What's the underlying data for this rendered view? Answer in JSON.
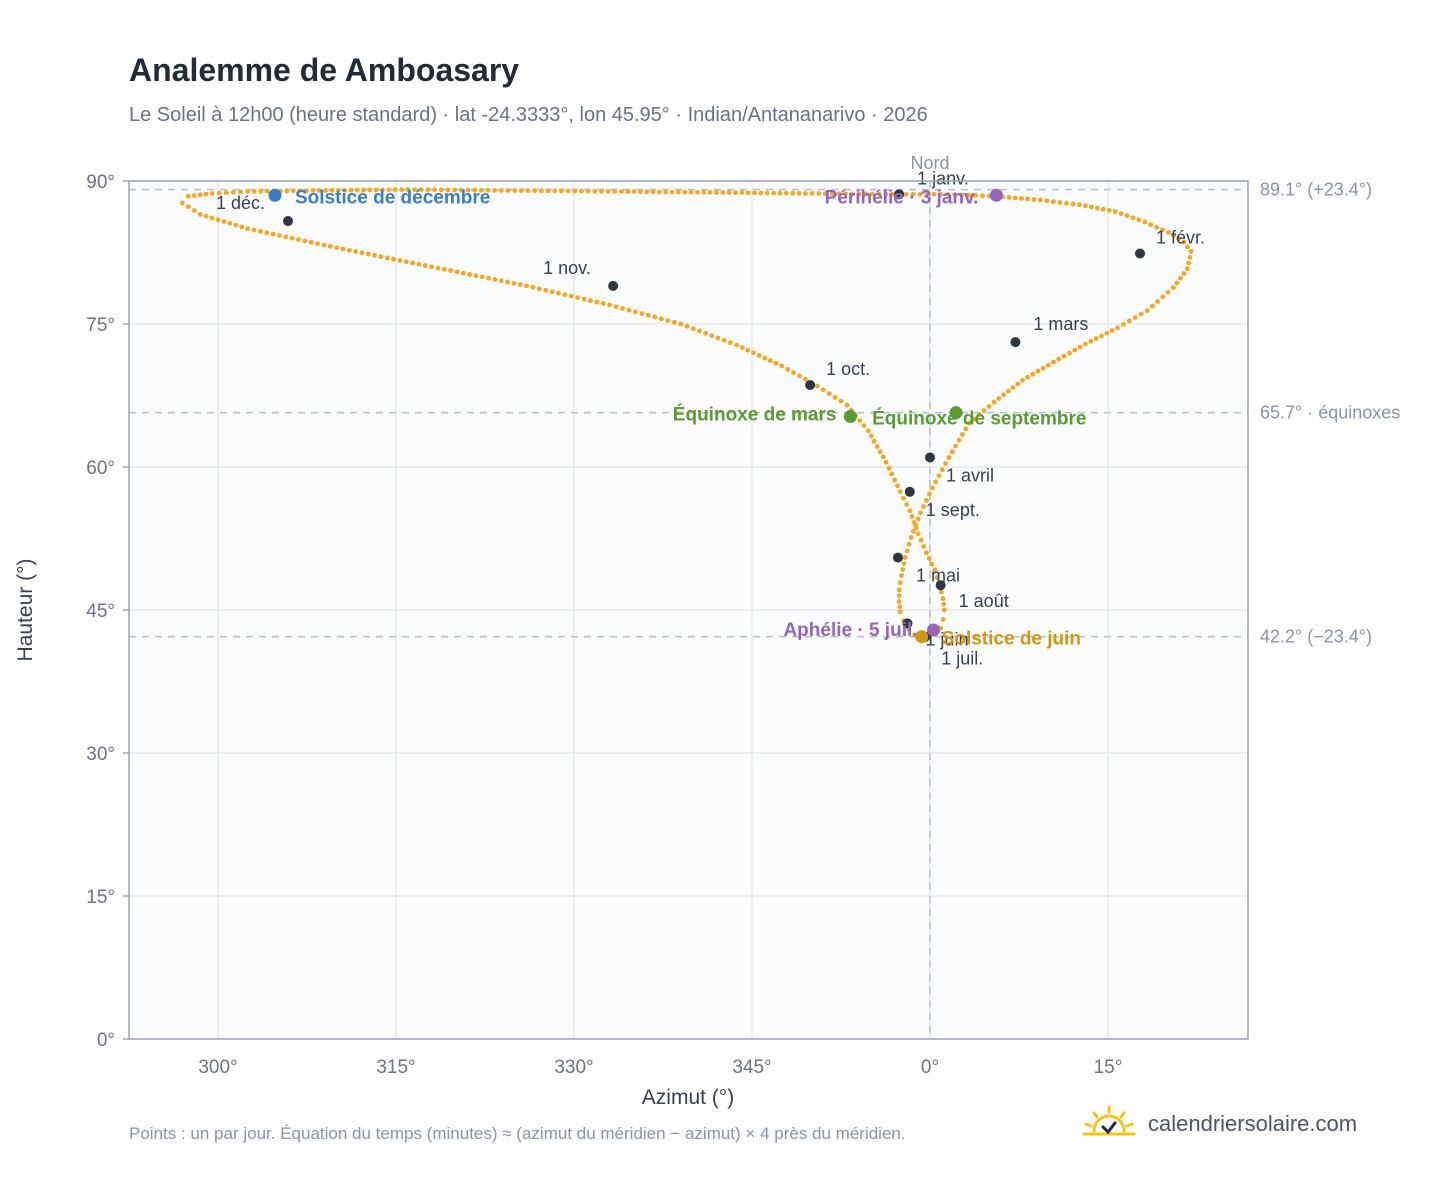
{
  "title": "Analemme de Amboasary",
  "subtitle": "Le Soleil à 12h00 (heure standard) · lat -24.3333°, lon 45.95° · Indian/Antananarivo · 2026",
  "footnote": "Points : un par jour. Équation du temps (minutes) ≈ (azimut du méridien − azimut) × 4 près du méridien.",
  "brand": {
    "name": "calendriersolaire.com",
    "icon": "sun-logo-icon"
  },
  "colors": {
    "curve": "#f5a623",
    "monthDot": "#2f3640",
    "solsticeDec": "#3b7dc4",
    "solsticeJun": "#d4960e",
    "equinox": "#5a9a32",
    "apsis": "#9466bb",
    "grid": "#e4e8ee",
    "plotBg": "#fafcfe",
    "frame": "#9aa5b4",
    "refLine": "#b8c2cc"
  },
  "chart_data": {
    "type": "scatter",
    "title": "Analemme de Amboasary",
    "xlabel": "Azimut (°)",
    "ylabel": "Hauteur (°)",
    "xlim": [
      -67.5,
      26.8
    ],
    "ylim": [
      0,
      90
    ],
    "x_ticks": [
      {
        "value": -60,
        "label": "300°"
      },
      {
        "value": -45,
        "label": "315°"
      },
      {
        "value": -30,
        "label": "330°"
      },
      {
        "value": -15,
        "label": "345°"
      },
      {
        "value": 0,
        "label": "0°"
      },
      {
        "value": 15,
        "label": "15°"
      }
    ],
    "y_ticks": [
      {
        "value": 0,
        "label": "0°"
      },
      {
        "value": 15,
        "label": "15°"
      },
      {
        "value": 30,
        "label": "30°"
      },
      {
        "value": 45,
        "label": "45°"
      },
      {
        "value": 60,
        "label": "60°"
      },
      {
        "value": 75,
        "label": "75°"
      },
      {
        "value": 90,
        "label": "90°"
      }
    ],
    "grid": true,
    "north_line": {
      "x": 0,
      "label": "Nord"
    },
    "reference_lines": [
      {
        "y": 89.1,
        "label": "89.1° (+23.4°)"
      },
      {
        "y": 65.7,
        "label": "65.7° · équinoxes"
      },
      {
        "y": 42.2,
        "label": "42.2° (−23.4°)"
      }
    ],
    "series": [
      {
        "name": "",
        "note": "Points : un par jour",
        "x": [
          -2.6,
          1.5,
          5.6,
          9.3,
          12.6,
          15.6,
          18.1,
          20.1,
          21.4,
          22.0,
          21.7,
          20.5,
          18.3,
          15.8,
          13.1,
          10.4,
          7.8,
          5.4,
          3.3,
          1.6,
          0.2,
          -0.8,
          -1.6,
          -2.1,
          -2.4,
          -2.6,
          -2.6,
          -2.5,
          -2.2,
          -1.8,
          -1.3,
          -0.6,
          0.0,
          0.5,
          0.9,
          1.1,
          1.2,
          1.1,
          0.8,
          0.4,
          -0.3,
          -1.0,
          -1.7,
          -2.5,
          -3.7,
          -5.2,
          -7.0,
          -9.5,
          -12.5,
          -16.3,
          -21.0,
          -27.0,
          -34.0,
          -42.0,
          -50.0,
          -57.5,
          -61.5,
          -63.0,
          -62.5,
          -60.5,
          -57.5,
          -52.0,
          -44.0,
          -35.0,
          -26.0,
          -18.0,
          -10.5,
          -2.6
        ],
        "y": [
          88.6,
          88.6,
          88.4,
          88.0,
          87.5,
          86.8,
          85.7,
          84.6,
          83.6,
          82.6,
          80.8,
          78.8,
          76.4,
          74.6,
          72.9,
          71.0,
          69.1,
          66.8,
          64.6,
          61.0,
          57.8,
          55.2,
          52.6,
          50.5,
          48.6,
          47.1,
          45.9,
          44.8,
          43.9,
          43.0,
          42.4,
          42.2,
          42.2,
          42.5,
          43.1,
          44.0,
          45.0,
          46.2,
          47.6,
          49.2,
          51.0,
          53.0,
          55.4,
          57.4,
          60.5,
          63.8,
          66.5,
          68.5,
          70.6,
          72.8,
          75.0,
          77.0,
          79.0,
          81.0,
          83.0,
          85.0,
          86.5,
          87.7,
          88.4,
          88.7,
          88.9,
          89.0,
          89.1,
          89.0,
          88.9,
          88.8,
          88.7,
          88.6
        ]
      }
    ],
    "month_markers": [
      {
        "label": "1 janv.",
        "x": -2.6,
        "y": 88.6
      },
      {
        "label": "1 févr.",
        "x": 17.7,
        "y": 82.4
      },
      {
        "label": "1 mars",
        "x": 7.2,
        "y": 73.1
      },
      {
        "label": "1 avril",
        "x": 0.0,
        "y": 61.0
      },
      {
        "label": "1 mai",
        "x": -2.7,
        "y": 50.5
      },
      {
        "label": "1 juin",
        "x": -1.9,
        "y": 43.6
      },
      {
        "label": "1 juil.",
        "x": -0.4,
        "y": 42.2
      },
      {
        "label": "1 août",
        "x": 0.9,
        "y": 47.6
      },
      {
        "label": "1 sept.",
        "x": -1.7,
        "y": 57.4
      },
      {
        "label": "1 oct.",
        "x": -10.1,
        "y": 68.6
      },
      {
        "label": "1 nov.",
        "x": -26.7,
        "y": 79.0
      },
      {
        "label": "1 déc.",
        "x": -54.1,
        "y": 85.8
      }
    ],
    "events": [
      {
        "label": "Solstice de décembre",
        "x": -55.2,
        "y": 88.5,
        "kind": "solsticeDec"
      },
      {
        "label": "Périhélie · 3 janv.",
        "x": 5.6,
        "y": 88.5,
        "kind": "apsis"
      },
      {
        "label": "Équinoxe de mars",
        "x": -6.7,
        "y": 65.3,
        "kind": "equinox"
      },
      {
        "label": "Équinoxe de septembre",
        "x": 2.2,
        "y": 65.7,
        "kind": "equinox"
      },
      {
        "label": "Aphélie · 5 juil.",
        "x": 0.3,
        "y": 42.9,
        "kind": "apsis"
      },
      {
        "label": "Solstice de juin",
        "x": -0.7,
        "y": 42.2,
        "kind": "solsticeJun"
      }
    ]
  }
}
